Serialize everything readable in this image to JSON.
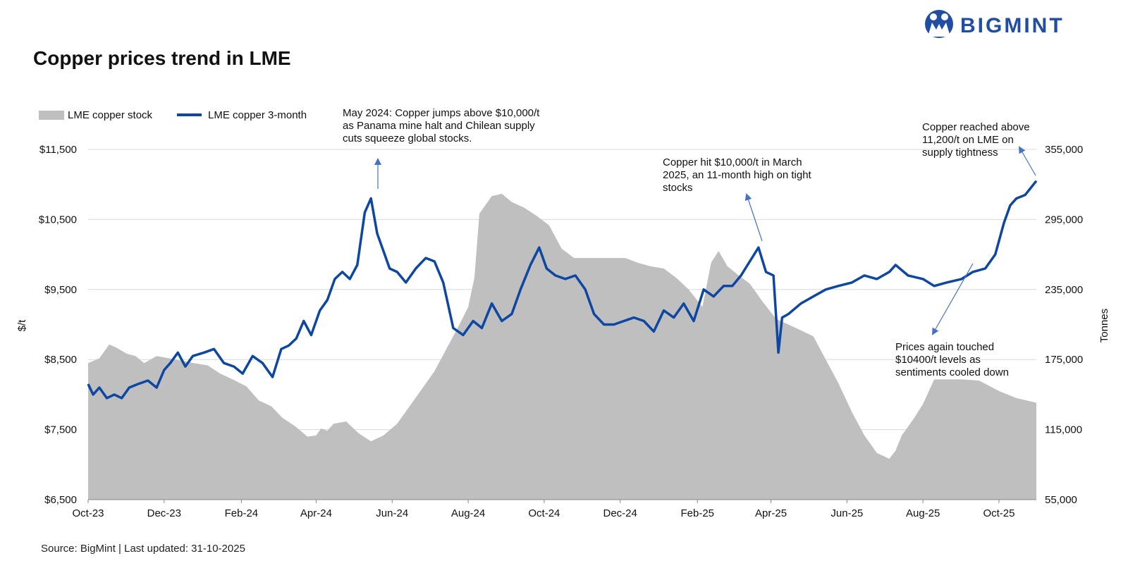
{
  "chart_data": {
    "type": "line",
    "title": "Copper prices trend in LME",
    "source": "Source: BigMint | Last updated: 31-10-2025",
    "ylabel": "$/t",
    "y2label": "Tonnes",
    "ylim": [
      6500,
      11500
    ],
    "y2lim": [
      55000,
      355000
    ],
    "yticks": [
      "$11,500",
      "$10,500",
      "$9,500",
      "$8,500",
      "$7,500",
      "$6,500"
    ],
    "y2ticks": [
      "355,000",
      "295,000",
      "235,000",
      "175,000",
      "115,000",
      "55,000"
    ],
    "xticks": [
      "Oct-23",
      "Dec-23",
      "Feb-24",
      "Apr-24",
      "Jun-24",
      "Aug-24",
      "Oct-24",
      "Dec-24",
      "Feb-25",
      "Apr-25",
      "Jun-25",
      "Aug-25",
      "Oct-25"
    ],
    "grid": true,
    "legend_position": "top-left",
    "series": [
      {
        "name": "LME copper stock",
        "kind": "area",
        "axis": "right",
        "color": "#bfbfbf",
        "x": [
          "2023-10-01",
          "2023-10-10",
          "2023-10-18",
          "2023-10-24",
          "2023-11-01",
          "2023-11-08",
          "2023-11-15",
          "2023-11-25",
          "2023-12-05",
          "2023-12-15",
          "2023-12-25",
          "2024-01-05",
          "2024-01-15",
          "2024-01-25",
          "2024-02-05",
          "2024-02-15",
          "2024-02-25",
          "2024-03-05",
          "2024-03-15",
          "2024-03-25",
          "2024-04-01",
          "2024-04-05",
          "2024-04-10",
          "2024-04-15",
          "2024-04-25",
          "2024-05-05",
          "2024-05-15",
          "2024-05-25",
          "2024-06-05",
          "2024-06-15",
          "2024-06-25",
          "2024-07-05",
          "2024-07-15",
          "2024-07-25",
          "2024-08-01",
          "2024-08-06",
          "2024-08-10",
          "2024-08-20",
          "2024-08-28",
          "2024-09-05",
          "2024-09-15",
          "2024-09-25",
          "2024-10-05",
          "2024-10-15",
          "2024-10-25",
          "2024-11-05",
          "2024-11-15",
          "2024-11-25",
          "2024-12-05",
          "2024-12-15",
          "2024-12-25",
          "2025-01-05",
          "2025-01-15",
          "2025-01-25",
          "2025-02-05",
          "2025-02-12",
          "2025-02-18",
          "2025-02-25",
          "2025-03-05",
          "2025-03-15",
          "2025-03-25",
          "2025-04-05",
          "2025-04-15",
          "2025-04-25",
          "2025-05-05",
          "2025-05-15",
          "2025-05-25",
          "2025-06-05",
          "2025-06-15",
          "2025-06-25",
          "2025-07-05",
          "2025-07-10",
          "2025-07-15",
          "2025-07-25",
          "2025-08-01",
          "2025-08-10",
          "2025-08-20",
          "2025-09-01",
          "2025-09-15",
          "2025-10-01",
          "2025-10-15",
          "2025-10-31"
        ],
        "values": [
          172000,
          176000,
          188000,
          185000,
          180000,
          178000,
          172000,
          178000,
          176000,
          174000,
          172000,
          170000,
          163000,
          158000,
          152000,
          140000,
          135000,
          125000,
          118000,
          109000,
          110000,
          116000,
          114000,
          120000,
          122000,
          112000,
          105000,
          110000,
          120000,
          135000,
          150000,
          165000,
          185000,
          205000,
          220000,
          245000,
          300000,
          315000,
          317000,
          310000,
          305000,
          298000,
          290000,
          270000,
          262000,
          262000,
          262000,
          262000,
          262000,
          258000,
          255000,
          253000,
          245000,
          235000,
          220000,
          258000,
          268000,
          255000,
          248000,
          240000,
          225000,
          210000,
          205000,
          200000,
          195000,
          175000,
          155000,
          130000,
          110000,
          95000,
          90000,
          97000,
          110000,
          125000,
          137000,
          158000,
          158000,
          158000,
          157000,
          148000,
          142000,
          138000
        ]
      },
      {
        "name": "LME copper 3-month",
        "kind": "line",
        "axis": "left",
        "color": "#0d47a1",
        "x": [
          "2023-10-01",
          "2023-10-05",
          "2023-10-10",
          "2023-10-16",
          "2023-10-22",
          "2023-10-28",
          "2023-11-03",
          "2023-11-10",
          "2023-11-18",
          "2023-11-25",
          "2023-12-01",
          "2023-12-06",
          "2023-12-12",
          "2023-12-18",
          "2023-12-24",
          "2024-01-02",
          "2024-01-10",
          "2024-01-18",
          "2024-01-26",
          "2024-02-02",
          "2024-02-10",
          "2024-02-18",
          "2024-02-26",
          "2024-03-04",
          "2024-03-10",
          "2024-03-16",
          "2024-03-22",
          "2024-03-28",
          "2024-04-04",
          "2024-04-10",
          "2024-04-16",
          "2024-04-22",
          "2024-04-28",
          "2024-05-04",
          "2024-05-10",
          "2024-05-15",
          "2024-05-20",
          "2024-05-24",
          "2024-05-30",
          "2024-06-05",
          "2024-06-12",
          "2024-06-20",
          "2024-06-28",
          "2024-07-05",
          "2024-07-12",
          "2024-07-20",
          "2024-07-28",
          "2024-08-05",
          "2024-08-12",
          "2024-08-20",
          "2024-08-28",
          "2024-09-05",
          "2024-09-12",
          "2024-09-20",
          "2024-09-27",
          "2024-10-03",
          "2024-10-10",
          "2024-10-18",
          "2024-10-26",
          "2024-11-03",
          "2024-11-10",
          "2024-11-18",
          "2024-11-26",
          "2024-12-04",
          "2024-12-12",
          "2024-12-20",
          "2024-12-28",
          "2025-01-05",
          "2025-01-13",
          "2025-01-21",
          "2025-01-29",
          "2025-02-06",
          "2025-02-14",
          "2025-02-22",
          "2025-03-01",
          "2025-03-08",
          "2025-03-15",
          "2025-03-22",
          "2025-03-28",
          "2025-04-03",
          "2025-04-07",
          "2025-04-10",
          "2025-04-15",
          "2025-04-25",
          "2025-05-05",
          "2025-05-15",
          "2025-05-25",
          "2025-06-05",
          "2025-06-15",
          "2025-06-25",
          "2025-07-05",
          "2025-07-10",
          "2025-07-20",
          "2025-08-01",
          "2025-08-10",
          "2025-08-20",
          "2025-09-01",
          "2025-09-10",
          "2025-09-20",
          "2025-09-28",
          "2025-10-05",
          "2025-10-10",
          "2025-10-15",
          "2025-10-22",
          "2025-10-31"
        ],
        "values": [
          8150,
          8000,
          8100,
          7950,
          8000,
          7950,
          8100,
          8150,
          8200,
          8100,
          8350,
          8450,
          8600,
          8400,
          8550,
          8600,
          8650,
          8450,
          8400,
          8300,
          8550,
          8450,
          8250,
          8650,
          8700,
          8800,
          9050,
          8850,
          9200,
          9350,
          9650,
          9750,
          9650,
          9850,
          10600,
          10800,
          10300,
          10100,
          9800,
          9750,
          9600,
          9800,
          9950,
          9900,
          9600,
          8950,
          8850,
          9050,
          8950,
          9300,
          9050,
          9150,
          9500,
          9850,
          10100,
          9800,
          9700,
          9650,
          9700,
          9500,
          9150,
          9000,
          9000,
          9050,
          9100,
          9050,
          8900,
          9200,
          9100,
          9300,
          9050,
          9500,
          9400,
          9550,
          9550,
          9700,
          9900,
          10100,
          9750,
          9700,
          8600,
          9100,
          9150,
          9300,
          9400,
          9500,
          9550,
          9600,
          9700,
          9650,
          9750,
          9850,
          9700,
          9650,
          9550,
          9600,
          9650,
          9750,
          9800,
          10000,
          10450,
          10700,
          10800,
          10850,
          11050
        ]
      }
    ],
    "annotations": [
      {
        "lines": [
          "May 2024: Copper jumps above $10,000/t",
          "as Panama mine halt and Chilean supply",
          "cuts squeeze global stocks."
        ]
      },
      {
        "lines": [
          "Copper hit $10,000/t in March",
          "2025, an 11-month high on tight",
          "stocks"
        ]
      },
      {
        "lines": [
          "Copper reached above",
          "11,200/t on LME on",
          "supply tightness"
        ]
      },
      {
        "lines": [
          "Prices again touched",
          "$10400/t levels as",
          "sentiments cooled down"
        ]
      }
    ],
    "logo_text": "BIGMINT"
  }
}
